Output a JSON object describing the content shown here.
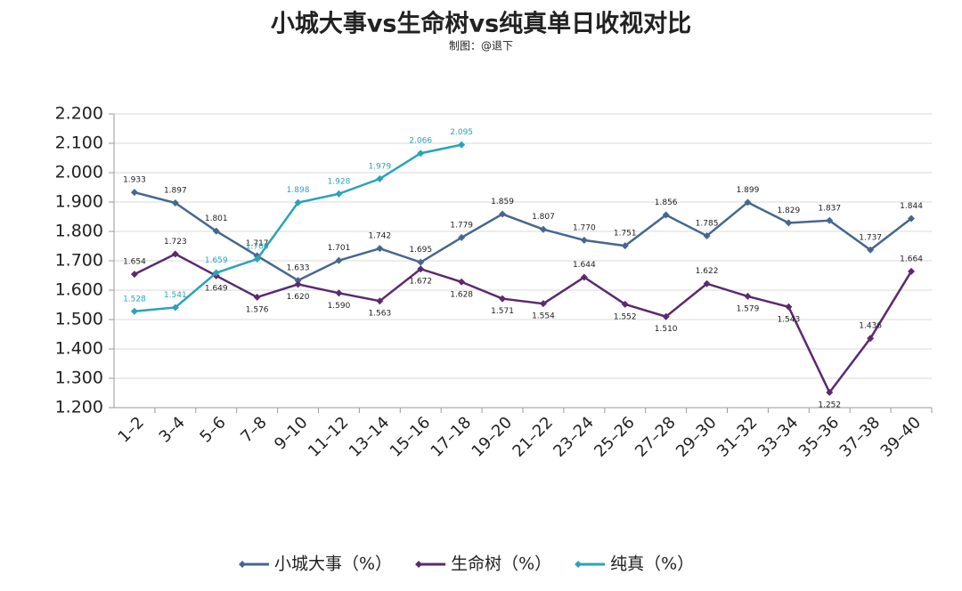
{
  "chart_data": {
    "type": "line",
    "title": "小城大事vs生命树vs纯真单日收视对比",
    "subtitle": "制图：@退下",
    "categories": [
      "1–2",
      "3–4",
      "5–6",
      "7–8",
      "9–10",
      "11–12",
      "13–14",
      "15–16",
      "17–18",
      "19–20",
      "21–22",
      "23–24",
      "25–26",
      "27–28",
      "29–30",
      "31–32",
      "33–34",
      "35–36",
      "37–38",
      "39–40"
    ],
    "series": [
      {
        "name": "小城大事（%）",
        "color": "#46678f",
        "values": [
          1.933,
          1.897,
          1.801,
          1.717,
          1.633,
          1.701,
          1.742,
          1.695,
          1.779,
          1.859,
          1.807,
          1.77,
          1.751,
          1.856,
          1.785,
          1.899,
          1.829,
          1.837,
          1.737,
          1.844
        ],
        "value_labels": [
          "1.933",
          "1.897",
          "1.801",
          "1.717",
          "1.633",
          "1.701",
          "1.742",
          "1.695",
          "1.779",
          "1.859",
          "1.807",
          "1.770",
          "1.751",
          "1.856",
          "1.785",
          "1.899",
          "1.829",
          "1.837",
          "1.737",
          "1.844"
        ]
      },
      {
        "name": "生命树（%）",
        "color": "#5b2a6e",
        "values": [
          1.654,
          1.723,
          1.649,
          1.576,
          1.62,
          1.59,
          1.563,
          1.672,
          1.628,
          1.571,
          1.554,
          1.644,
          1.552,
          1.51,
          1.622,
          1.579,
          1.543,
          1.252,
          1.436,
          1.664
        ],
        "value_labels": [
          "1.654",
          "1.723",
          "1.649",
          "1.576",
          "1.620",
          "1.590",
          "1.563",
          "1.672",
          "1.628",
          "1.571",
          "1.554",
          "1.644",
          "1.552",
          "1.510",
          "1.622",
          "1.579",
          "1.543",
          "1.252",
          "1.436",
          "1.664"
        ]
      },
      {
        "name": "纯真（%）",
        "color": "#2aa3b8",
        "values": [
          1.528,
          1.541,
          1.659,
          1.706,
          1.898,
          1.928,
          1.979,
          2.066,
          2.095,
          null,
          null,
          null,
          null,
          null,
          null,
          null,
          null,
          null,
          null,
          null
        ],
        "value_labels": [
          "1.528",
          "1.541",
          "1.659",
          "1.706",
          "1.898",
          "1.928",
          "1.979",
          "2.066",
          "2.095",
          null,
          null,
          null,
          null,
          null,
          null,
          null,
          null,
          null,
          null,
          null
        ]
      }
    ],
    "ylim": [
      1.2,
      2.2
    ],
    "yticks": [
      {
        "value": 1.2,
        "label": "1.200"
      },
      {
        "value": 1.3,
        "label": "1.300"
      },
      {
        "value": 1.4,
        "label": "1.400"
      },
      {
        "value": 1.5,
        "label": "1.500"
      },
      {
        "value": 1.6,
        "label": "1.600"
      },
      {
        "value": 1.7,
        "label": "1.700"
      },
      {
        "value": 1.8,
        "label": "1.800"
      },
      {
        "value": 1.9,
        "label": "1.900"
      },
      {
        "value": 2.0,
        "label": "2.000"
      },
      {
        "value": 2.1,
        "label": "2.100"
      },
      {
        "value": 2.2,
        "label": "2.200"
      }
    ],
    "grid": true,
    "legend": "bottom"
  }
}
